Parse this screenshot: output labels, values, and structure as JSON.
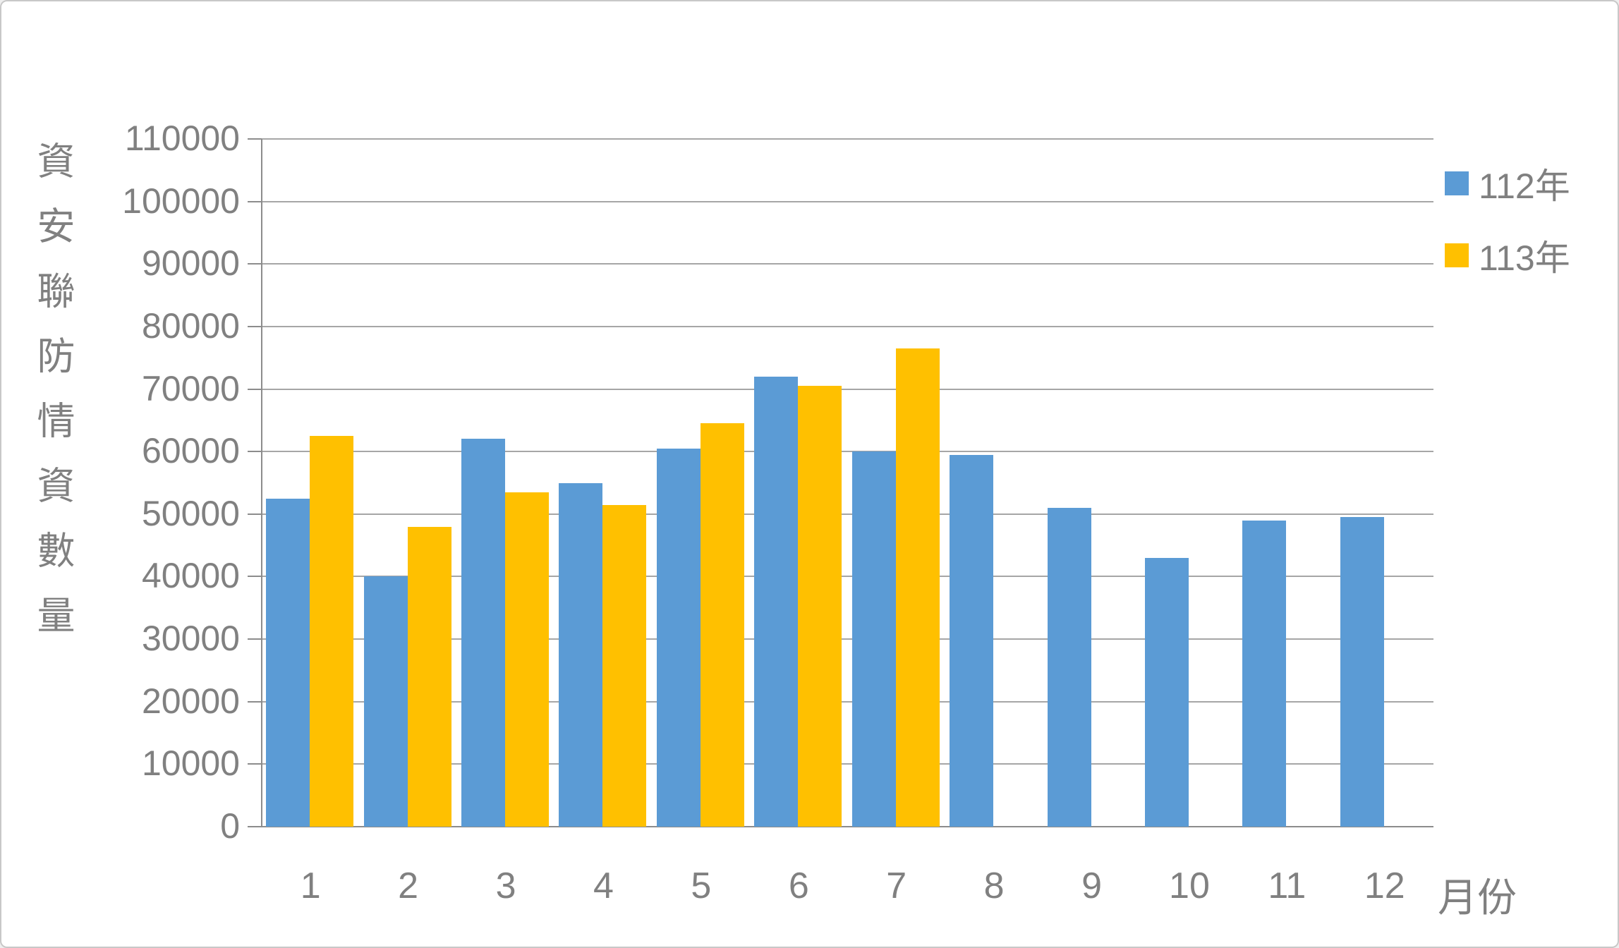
{
  "window": {
    "background": "#FFFFFF",
    "border_color": "#C8C8C8"
  },
  "style": {
    "text_color": "#808080",
    "grid_color": "#A6A6A6",
    "axis_color": "#8C8C8C",
    "blue": "#5B9BD5",
    "yellow": "#FFC000"
  },
  "chart_data": {
    "type": "bar",
    "title": "",
    "x_axis_title": "月份",
    "y_axis_title": "資安聯防情資數量",
    "categories": [
      "1",
      "2",
      "3",
      "4",
      "5",
      "6",
      "7",
      "8",
      "9",
      "10",
      "11",
      "12"
    ],
    "series": [
      {
        "name": "112年",
        "color": "#5B9BD5",
        "values": [
          52500,
          40000,
          62000,
          55000,
          60500,
          72000,
          60000,
          59500,
          51000,
          43000,
          49000,
          49500
        ]
      },
      {
        "name": "113年",
        "color": "#FFC000",
        "values": [
          62500,
          48000,
          53500,
          51500,
          64500,
          70500,
          76500,
          null,
          null,
          null,
          null,
          null
        ]
      }
    ],
    "y_ticks": [
      0,
      10000,
      20000,
      30000,
      40000,
      50000,
      60000,
      70000,
      80000,
      90000,
      100000,
      110000
    ],
    "ylim": [
      0,
      110000
    ],
    "grid": true,
    "legend_position": "top-right",
    "legend": [
      {
        "label": "112年",
        "color": "#5B9BD5"
      },
      {
        "label": "113年",
        "color": "#FFC000"
      }
    ]
  }
}
